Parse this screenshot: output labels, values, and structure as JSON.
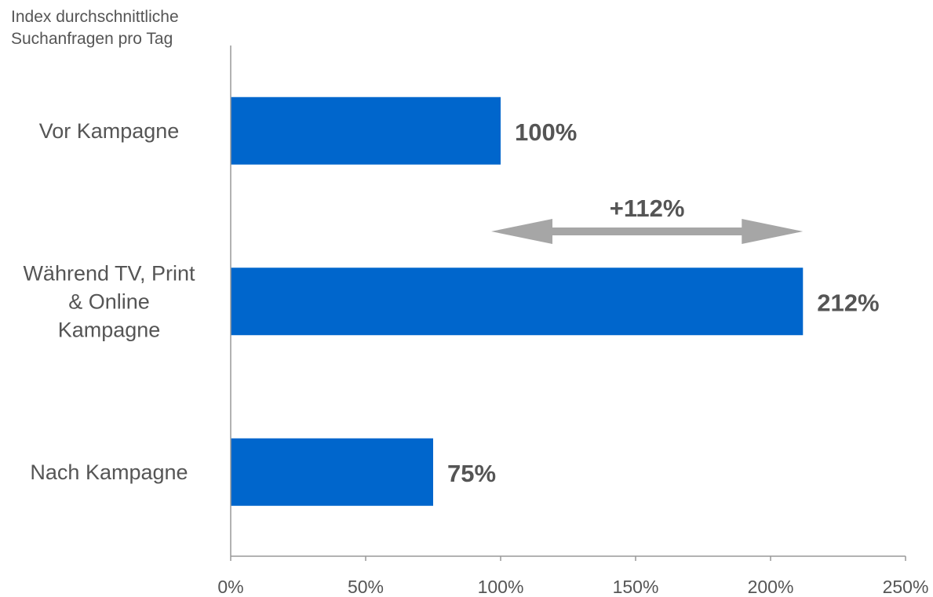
{
  "chart_data": {
    "type": "bar",
    "orientation": "horizontal",
    "ylabel": "Index durchschnittliche Suchanfragen pro Tag",
    "categories": [
      [
        "Vor Kampagne"
      ],
      [
        "Während TV, Print",
        "& Online",
        "Kampagne"
      ],
      [
        "Nach Kampagne"
      ]
    ],
    "values": [
      100,
      212,
      75
    ],
    "data_labels": [
      "100%",
      "212%",
      "75%"
    ],
    "xlim": [
      0,
      250
    ],
    "x_ticks": [
      0,
      50,
      100,
      150,
      200,
      250
    ],
    "x_tick_labels": [
      "0%",
      "50%",
      "100%",
      "150%",
      "200%",
      "250%"
    ],
    "bar_color": "#0066CC",
    "grid": false,
    "annotation": {
      "text": "+112%",
      "from": 100,
      "to": 212,
      "color": "#A6A6A6"
    }
  }
}
